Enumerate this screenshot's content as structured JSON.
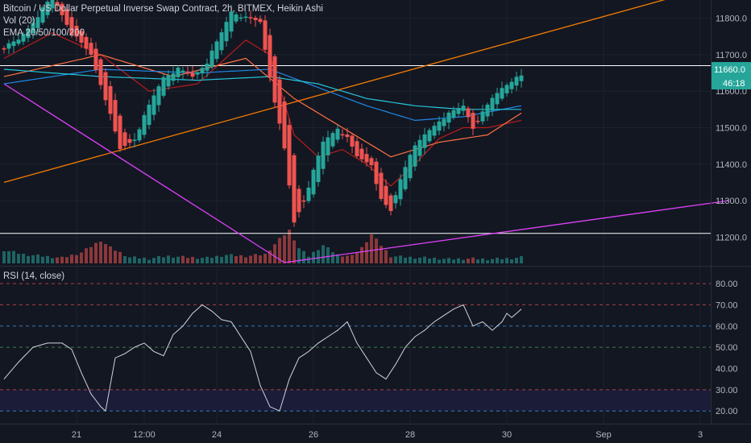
{
  "header": {
    "title": "Bitcoin / US Dollar Perpetual Inverse Swap Contract, 2h, BITMEX, Heikin Ashi",
    "vol_label": "Vol (20)",
    "ema_label": "EMA 20/50/100/200"
  },
  "rsi_header": {
    "label": "RSI (14, close)"
  },
  "price_badge": {
    "value": "11660.0",
    "countdown": "46:18",
    "color": "#26a69a"
  },
  "colors": {
    "background": "#131722",
    "up": "#26a69a",
    "down": "#ef5350",
    "grid": "#1e222d",
    "text": "#b2b5be",
    "trend_orange": "#f57c00",
    "trend_magenta": "#e040fb",
    "level_white": "#ffffff",
    "ema20": "#b71c1c",
    "ema50": "#ff7043",
    "ema100": "#1e88e5",
    "ema200": "#26c6da",
    "rsi_line": "#d1d4dc",
    "rsi_band": "#1a1c38"
  },
  "chart_data": [
    {
      "type": "candlestick",
      "name": "price",
      "chart_style": "Heikin Ashi",
      "ylim": [
        11130,
        11850
      ],
      "y_ticks": [
        11200,
        11300,
        11400,
        11500,
        11600,
        11700,
        11800
      ],
      "y_tick_labels": [
        "11200.0",
        "11300.0",
        "11400.0",
        "11500.0",
        "11600.0",
        "11700.0",
        "11800.0"
      ],
      "x_tick_labels": [
        "21",
        "12:00",
        "24",
        "26",
        "28",
        "30",
        "Sep",
        "3"
      ],
      "x_tick_positions": [
        15,
        29,
        44,
        64,
        84,
        104,
        124,
        144
      ],
      "series": [
        {
          "name": "BTCUSD",
          "anchors": [
            [
              0,
              11720
            ],
            [
              3,
              11740
            ],
            [
              6,
              11790
            ],
            [
              10,
              11860
            ],
            [
              14,
              11760
            ],
            [
              18,
              11700
            ],
            [
              21,
              11580
            ],
            [
              24,
              11440
            ],
            [
              27,
              11470
            ],
            [
              30,
              11560
            ],
            [
              33,
              11640
            ],
            [
              36,
              11660
            ],
            [
              39,
              11640
            ],
            [
              42,
              11680
            ],
            [
              45,
              11760
            ],
            [
              47,
              11820
            ],
            [
              50,
              11800
            ],
            [
              53,
              11790
            ],
            [
              55,
              11640
            ],
            [
              58,
              11440
            ],
            [
              60,
              11240
            ],
            [
              62,
              11300
            ],
            [
              64,
              11380
            ],
            [
              66,
              11460
            ],
            [
              69,
              11500
            ],
            [
              71,
              11470
            ],
            [
              73,
              11420
            ],
            [
              76,
              11400
            ],
            [
              78,
              11300
            ],
            [
              80,
              11270
            ],
            [
              82,
              11360
            ],
            [
              84,
              11430
            ],
            [
              87,
              11480
            ],
            [
              90,
              11520
            ],
            [
              93,
              11545
            ],
            [
              95,
              11560
            ],
            [
              97,
              11500
            ],
            [
              99,
              11540
            ],
            [
              101,
              11580
            ],
            [
              103,
              11610
            ],
            [
              105,
              11630
            ],
            [
              107,
              11640
            ]
          ]
        }
      ],
      "ema": [
        {
          "name": "EMA 20",
          "anchors": [
            [
              0,
              11690
            ],
            [
              10,
              11760
            ],
            [
              20,
              11700
            ],
            [
              30,
              11600
            ],
            [
              40,
              11620
            ],
            [
              50,
              11740
            ],
            [
              55,
              11700
            ],
            [
              60,
              11480
            ],
            [
              65,
              11420
            ],
            [
              70,
              11440
            ],
            [
              75,
              11400
            ],
            [
              80,
              11340
            ],
            [
              85,
              11400
            ],
            [
              90,
              11470
            ],
            [
              95,
              11500
            ],
            [
              100,
              11500
            ],
            [
              107,
              11520
            ]
          ]
        },
        {
          "name": "EMA 50",
          "anchors": [
            [
              0,
              11640
            ],
            [
              20,
              11700
            ],
            [
              35,
              11640
            ],
            [
              50,
              11690
            ],
            [
              60,
              11580
            ],
            [
              70,
              11500
            ],
            [
              80,
              11420
            ],
            [
              90,
              11460
            ],
            [
              100,
              11480
            ],
            [
              107,
              11540
            ]
          ]
        },
        {
          "name": "EMA 100",
          "anchors": [
            [
              0,
              11620
            ],
            [
              20,
              11660
            ],
            [
              40,
              11650
            ],
            [
              55,
              11660
            ],
            [
              65,
              11610
            ],
            [
              75,
              11560
            ],
            [
              85,
              11520
            ],
            [
              95,
              11530
            ],
            [
              107,
              11560
            ]
          ]
        },
        {
          "name": "EMA 200",
          "anchors": [
            [
              0,
              11660
            ],
            [
              20,
              11640
            ],
            [
              40,
              11630
            ],
            [
              55,
              11640
            ],
            [
              65,
              11620
            ],
            [
              75,
              11580
            ],
            [
              85,
              11560
            ],
            [
              95,
              11550
            ],
            [
              107,
              11550
            ]
          ]
        }
      ],
      "trend_lines": [
        {
          "color": "orange",
          "from": [
            0,
            11350
          ],
          "to": [
            150,
            11900
          ]
        },
        {
          "color": "magenta",
          "from": [
            0,
            11620
          ],
          "to": [
            58,
            11130
          ]
        },
        {
          "color": "magenta",
          "from": [
            58,
            11130
          ],
          "to": [
            150,
            11300
          ]
        }
      ],
      "horizontal_levels": [
        11670,
        11210
      ]
    },
    {
      "type": "bar",
      "name": "volume",
      "series": [
        {
          "name": "Vol (20)",
          "anchors": [
            [
              0,
              22
            ],
            [
              4,
              15
            ],
            [
              8,
              12
            ],
            [
              12,
              9
            ],
            [
              16,
              18
            ],
            [
              20,
              38
            ],
            [
              22,
              26
            ],
            [
              26,
              10
            ],
            [
              30,
              8
            ],
            [
              34,
              12
            ],
            [
              38,
              10
            ],
            [
              42,
              9
            ],
            [
              46,
              14
            ],
            [
              50,
              12
            ],
            [
              54,
              15
            ],
            [
              57,
              40
            ],
            [
              59,
              55
            ],
            [
              61,
              25
            ],
            [
              63,
              12
            ],
            [
              66,
              30
            ],
            [
              69,
              14
            ],
            [
              72,
              12
            ],
            [
              74,
              26
            ],
            [
              76,
              48
            ],
            [
              78,
              30
            ],
            [
              80,
              12
            ],
            [
              84,
              10
            ],
            [
              88,
              9
            ],
            [
              92,
              7
            ],
            [
              96,
              8
            ],
            [
              100,
              7
            ],
            [
              104,
              8
            ],
            [
              107,
              10
            ]
          ]
        }
      ]
    },
    {
      "type": "line",
      "name": "RSI (14, close)",
      "ylim": [
        14,
        88
      ],
      "y_ticks": [
        20,
        30,
        40,
        50,
        60,
        70,
        80
      ],
      "y_tick_labels": [
        "20.00",
        "30.00",
        "40.00",
        "50.00",
        "60.00",
        "70.00",
        "80.00"
      ],
      "levels": [
        80,
        70,
        60,
        50,
        30,
        20
      ],
      "band": [
        20,
        30
      ],
      "series": [
        {
          "name": "RSI",
          "anchors": [
            [
              0,
              35
            ],
            [
              3,
              43
            ],
            [
              6,
              50
            ],
            [
              9,
              52
            ],
            [
              12,
              52
            ],
            [
              14,
              49
            ],
            [
              16,
              38
            ],
            [
              18,
              28
            ],
            [
              20,
              22
            ],
            [
              21,
              20
            ],
            [
              23,
              45
            ],
            [
              25,
              47
            ],
            [
              27,
              50
            ],
            [
              29,
              52
            ],
            [
              31,
              48
            ],
            [
              33,
              46
            ],
            [
              35,
              56
            ],
            [
              37,
              60
            ],
            [
              39,
              66
            ],
            [
              41,
              70
            ],
            [
              43,
              67
            ],
            [
              45,
              63
            ],
            [
              47,
              62
            ],
            [
              49,
              55
            ],
            [
              51,
              48
            ],
            [
              53,
              32
            ],
            [
              55,
              22
            ],
            [
              57,
              20
            ],
            [
              59,
              35
            ],
            [
              61,
              45
            ],
            [
              63,
              48
            ],
            [
              65,
              52
            ],
            [
              67,
              55
            ],
            [
              69,
              58
            ],
            [
              71,
              62
            ],
            [
              73,
              52
            ],
            [
              75,
              45
            ],
            [
              77,
              38
            ],
            [
              79,
              35
            ],
            [
              81,
              42
            ],
            [
              83,
              50
            ],
            [
              85,
              55
            ],
            [
              87,
              58
            ],
            [
              89,
              62
            ],
            [
              91,
              65
            ],
            [
              93,
              68
            ],
            [
              95,
              70
            ],
            [
              97,
              60
            ],
            [
              99,
              62
            ],
            [
              101,
              58
            ],
            [
              103,
              62
            ],
            [
              104,
              66
            ],
            [
              105,
              64
            ],
            [
              107,
              68
            ]
          ]
        }
      ]
    }
  ]
}
